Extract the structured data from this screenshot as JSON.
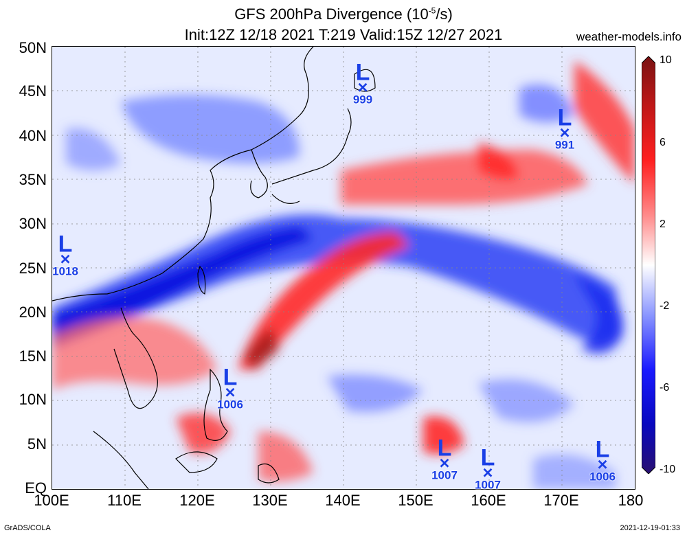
{
  "title_line1": "GFS 200hPa Divergence (10",
  "title_line1_sup": "-5",
  "title_line1_end": "/s)",
  "title_line2": "Init:12Z 12/18 2021 T:219 Valid:15Z 12/27 2021",
  "site": "weather-models.info",
  "footer_left": "GrADS/COLA",
  "footer_right": "2021-12-19-01:33",
  "lat_labels": [
    "50N",
    "45N",
    "40N",
    "35N",
    "30N",
    "25N",
    "20N",
    "15N",
    "10N",
    "5N",
    "EQ"
  ],
  "lon_labels": [
    "100E",
    "110E",
    "120E",
    "130E",
    "140E",
    "150E",
    "160E",
    "170E",
    "180"
  ],
  "colorbar": {
    "labels": [
      "10",
      "6",
      "2",
      "-2",
      "-6",
      "-10"
    ],
    "colors": [
      "#7a1212",
      "#c01818",
      "#ff2020",
      "#ff7070",
      "#ffc8c8",
      "#ffffff",
      "#c8d0ff",
      "#7080ff",
      "#1a1aff",
      "#0808c0",
      "#2a1070"
    ]
  },
  "lows": [
    {
      "label": "L",
      "pressure": "999"
    },
    {
      "label": "L",
      "pressure": "991"
    },
    {
      "label": "L",
      "pressure": "1018"
    },
    {
      "label": "L",
      "pressure": "1006"
    },
    {
      "label": "L",
      "pressure": "1007"
    },
    {
      "label": "L",
      "pressure": "1007"
    },
    {
      "label": "L",
      "pressure": "1006"
    }
  ]
}
